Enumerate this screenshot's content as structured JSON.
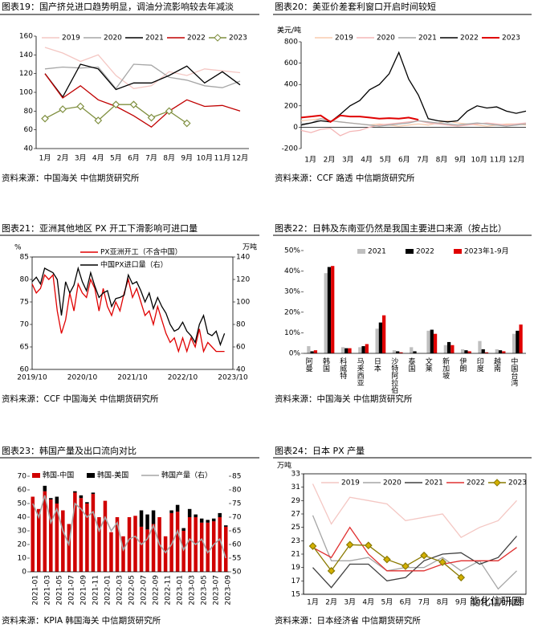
{
  "watermark": "能化信研圈",
  "chart_data": [
    {
      "type": "line",
      "title": "图表19：国产挤兑进口趋势明显，调油分流影响较去年减淡",
      "source": "资料来源：中国海关  中信期货研究所",
      "categories": [
        "1月",
        "2月",
        "3月",
        "4月",
        "5月",
        "6月",
        "7月",
        "8月",
        "9月",
        "10月",
        "11月",
        "12月"
      ],
      "ylim": [
        40,
        160
      ],
      "yticks": [
        40,
        60,
        80,
        100,
        120,
        140,
        160
      ],
      "series": [
        {
          "name": "2019",
          "color": "#f4c7c3",
          "values": [
            148,
            142,
            133,
            140,
            118,
            104,
            107,
            122,
            118,
            125,
            123,
            121
          ]
        },
        {
          "name": "2020",
          "color": "#a6a6a6",
          "values": [
            125,
            127,
            126,
            127,
            104,
            130,
            129,
            116,
            113,
            107,
            105,
            112
          ]
        },
        {
          "name": "2021",
          "color": "#000000",
          "values": [
            120,
            95,
            130,
            125,
            103,
            110,
            110,
            118,
            128,
            110,
            122,
            108
          ]
        },
        {
          "name": "2022",
          "color": "#c00000",
          "values": [
            120,
            94,
            107,
            92,
            85,
            75,
            63,
            80,
            92,
            85,
            86,
            80
          ]
        },
        {
          "name": "2023",
          "color": "#7f8f3f",
          "marker": "diamond",
          "values": [
            72,
            82,
            85,
            70,
            87,
            87,
            73,
            80,
            67,
            null,
            null,
            null
          ]
        }
      ]
    },
    {
      "type": "line",
      "title": "图表20：美亚价差套利窗口开启时间较短",
      "source": "资料来源：CCF 路透  中信期货研究所",
      "ylabel": "美元/吨",
      "categories": [
        "1月",
        null,
        "2月",
        null,
        "3月",
        null,
        "4月",
        null,
        "5月",
        null,
        "6月",
        null,
        "7月",
        null,
        "8月",
        null,
        "9月",
        null,
        "10月",
        null,
        "11月",
        null,
        "12月",
        null
      ],
      "ylim": [
        -200,
        800
      ],
      "yticks": [
        -200,
        0,
        200,
        400,
        600,
        800
      ],
      "series": [
        {
          "name": "2019",
          "color": "#f8cbad",
          "values": [
            60,
            70,
            80,
            60,
            50,
            40,
            30,
            20,
            30,
            20,
            10,
            20,
            30,
            20,
            40,
            60,
            40,
            30,
            20,
            10,
            20,
            30,
            30,
            20
          ]
        },
        {
          "name": "2020",
          "color": "#f4b6b6",
          "values": [
            -30,
            -50,
            -20,
            -10,
            -80,
            -40,
            -30,
            0,
            20,
            30,
            40,
            50,
            60,
            40,
            30,
            20,
            10,
            20,
            30,
            40,
            30,
            20,
            30,
            40
          ]
        },
        {
          "name": "2021",
          "color": "#a6a6a6",
          "values": [
            30,
            40,
            80,
            60,
            50,
            40,
            30,
            20,
            10,
            20,
            30,
            40,
            60,
            50,
            40,
            30,
            20,
            30,
            40,
            30,
            20,
            10,
            20,
            30
          ]
        },
        {
          "name": "2022",
          "color": "#000000",
          "values": [
            20,
            40,
            60,
            50,
            120,
            200,
            250,
            350,
            400,
            500,
            700,
            450,
            300,
            80,
            60,
            50,
            60,
            150,
            200,
            180,
            190,
            150,
            130,
            150
          ]
        },
        {
          "name": "2023",
          "color": "#e00000",
          "width": 2,
          "values": [
            90,
            100,
            110,
            50,
            110,
            100,
            100,
            90,
            80,
            85,
            80,
            90,
            70,
            null,
            null,
            null,
            null,
            null,
            null,
            null,
            null,
            null,
            null,
            null
          ]
        }
      ]
    },
    {
      "type": "dual_line",
      "title": "图表21：亚洲其他地区 PX 开工下滑影响可进口量",
      "source": "资料来源：CCF 中国海关  中信期货研究所",
      "ylabel": "%",
      "y2label": "万吨",
      "categories": [
        "2019/10",
        null,
        null,
        null,
        null,
        null,
        null,
        null,
        null,
        null,
        null,
        null,
        "2020/10",
        null,
        null,
        null,
        null,
        null,
        null,
        null,
        null,
        null,
        null,
        null,
        "2021/10",
        null,
        null,
        null,
        null,
        null,
        null,
        null,
        null,
        null,
        null,
        null,
        "2022/10",
        null,
        null,
        null,
        null,
        null,
        null,
        null,
        null,
        null,
        null,
        null,
        "2023/10"
      ],
      "ylim": [
        60,
        85
      ],
      "yticks": [
        60,
        65,
        70,
        75,
        80,
        85
      ],
      "y2lim": [
        40,
        140
      ],
      "y2ticks": [
        40,
        60,
        80,
        100,
        120,
        140
      ],
      "series": [
        {
          "name": "PX亚洲开工（不含中国）",
          "color": "#e00000",
          "values": [
            79,
            77,
            78,
            81,
            80,
            81,
            73,
            68,
            71,
            77,
            73,
            79,
            77,
            76,
            80,
            78,
            73,
            78,
            74,
            72,
            75,
            73,
            77,
            80,
            76,
            78,
            75,
            72,
            73,
            70,
            74,
            71,
            68,
            66,
            67,
            64,
            67,
            64,
            67,
            65,
            69,
            64,
            66,
            65,
            64,
            64,
            64,
            null,
            null
          ]
        },
        {
          "name": "中国PX进口量（右）",
          "color": "#000000",
          "axis": "y2",
          "values": [
            118,
            122,
            116,
            130,
            128,
            126,
            120,
            88,
            118,
            108,
            115,
            130,
            118,
            110,
            126,
            114,
            104,
            108,
            110,
            96,
            103,
            104,
            106,
            124,
            116,
            118,
            110,
            100,
            108,
            94,
            104,
            96,
            90,
            80,
            74,
            76,
            82,
            74,
            70,
            64,
            80,
            88,
            72,
            70,
            74,
            62,
            72,
            null,
            null
          ]
        }
      ]
    },
    {
      "type": "bar",
      "title": "图表22：日韩及东南亚仍然是我国主要进口来源（按占比）",
      "source": "资料来源：中国海关  中信期货研究所",
      "categories": [
        "阿曼",
        "韩国",
        "科威特",
        "马来西亚",
        "日本",
        "沙特阿拉伯",
        "泰国",
        "文莱",
        "新加坡",
        "伊朗",
        "印度",
        "越南",
        "中国台湾"
      ],
      "ylim": [
        0,
        50
      ],
      "yticks": [
        {
          "value": 0,
          "label": "0%"
        },
        {
          "value": 10,
          "label": "10%"
        },
        {
          "value": 20,
          "label": "20%"
        },
        {
          "value": 30,
          "label": "30%"
        },
        {
          "value": 40,
          "label": "40%"
        },
        {
          "value": 50,
          "label": "50%"
        }
      ],
      "series": [
        {
          "name": "2021",
          "color": "#bfbfbf",
          "values": [
            3.5,
            39,
            3,
            3,
            12,
            1.5,
            3,
            11,
            4,
            2,
            6,
            2,
            9.5
          ]
        },
        {
          "name": "2022",
          "color": "#000000",
          "values": [
            1,
            42,
            2.5,
            3.5,
            15,
            1,
            1,
            11.5,
            5.5,
            1.5,
            2,
            1.5,
            11
          ]
        },
        {
          "name": "2023年1-9月",
          "color": "#e00000",
          "values": [
            1.5,
            42.5,
            2.5,
            4.5,
            18.5,
            0.5,
            0,
            9.5,
            4,
            1,
            0.5,
            1,
            14
          ]
        }
      ]
    },
    {
      "type": "stacked_bar_line",
      "title": "图表23：韩国产量及出口流向对比",
      "source": "资料来源：KPIA 韩国海关  中信期货研究所",
      "categories": [
        "2021-01",
        null,
        "2021-03",
        null,
        "2021-05",
        null,
        "2021-07",
        null,
        "2021-09",
        null,
        "2021-11",
        null,
        "2022-01",
        null,
        "2022-03",
        null,
        "2022-05",
        null,
        "2022-07",
        null,
        "2022-09",
        null,
        "2022-11",
        null,
        "2023-01",
        null,
        "2023-03",
        null,
        "2023-05",
        null,
        "2023-07",
        null,
        "2023-09"
      ],
      "ylim": [
        0,
        70
      ],
      "yticks": [
        0,
        10,
        20,
        30,
        40,
        50,
        60,
        70
      ],
      "y2lim": [
        50,
        85
      ],
      "y2ticks": [
        50,
        55,
        60,
        65,
        70,
        75,
        80,
        85
      ],
      "series": [
        {
          "name": "韩国-中国",
          "color": "#d00000",
          "values": [
            55,
            46,
            59,
            53,
            50,
            45,
            35,
            58,
            54,
            50,
            57,
            40,
            52,
            29,
            40,
            26,
            40,
            41,
            33,
            31,
            35,
            40,
            26,
            43,
            44,
            30,
            40,
            40,
            36,
            36,
            37,
            40,
            33
          ]
        },
        {
          "name": "韩国-美国",
          "color": "#000000",
          "values": [
            0,
            0,
            4,
            1,
            5,
            0,
            0,
            1,
            2,
            1,
            1,
            0,
            0,
            0,
            0,
            0,
            0,
            0,
            12,
            11,
            10,
            0,
            0,
            2,
            5,
            2,
            6,
            2,
            3,
            2,
            2,
            3,
            1
          ]
        },
        {
          "name": "韩国产量（右）",
          "color": "#a6a6a6",
          "axis": "y2",
          "values": [
            75,
            70,
            78,
            68,
            73,
            65,
            60,
            75,
            73,
            70,
            72,
            65,
            70,
            65,
            68,
            58,
            62,
            63,
            60,
            62,
            67,
            60,
            57,
            60,
            65,
            58,
            62,
            60,
            62,
            57,
            60,
            62,
            55
          ]
        }
      ]
    },
    {
      "type": "line",
      "title": "图表24：日本 PX 产量",
      "source": "资料来源：日本经济省  中信期货研究所",
      "ylabel": "万吨",
      "categories": [
        "1月",
        "2月",
        "3月",
        "4月",
        "5月",
        "6月",
        "7月",
        "8月",
        "9月",
        "10月",
        "11月",
        "12月"
      ],
      "ylim": [
        15,
        33
      ],
      "yticks": [
        15,
        17,
        19,
        21,
        23,
        25,
        27,
        29,
        31,
        33
      ],
      "series": [
        {
          "name": "2019",
          "color": "#f4c7c3",
          "values": [
            31.5,
            25.5,
            29.5,
            29,
            28.5,
            26,
            26.5,
            27,
            23.5,
            25,
            26,
            29
          ]
        },
        {
          "name": "2020",
          "color": "#a6a6a6",
          "values": [
            26.8,
            20,
            20,
            20.5,
            18.5,
            19,
            19,
            20.5,
            18.5,
            20,
            15.8,
            18.5
          ]
        },
        {
          "name": "2021",
          "color": "#404040",
          "values": [
            19,
            16,
            19.5,
            19.5,
            17,
            17.5,
            20,
            21,
            21.2,
            19.5,
            20.5,
            23.7
          ]
        },
        {
          "name": "2022",
          "color": "#e03030",
          "values": [
            22,
            20.5,
            25,
            21,
            18.5,
            18.5,
            18.5,
            19.5,
            20,
            20,
            20,
            22
          ]
        },
        {
          "name": "2023",
          "color": "#8a7a00",
          "marker": "diamond",
          "mfill": "#d4b000",
          "values": [
            22.2,
            18.5,
            22.4,
            22.3,
            20.2,
            19.2,
            20.8,
            19.8,
            17.5,
            null,
            null,
            null
          ]
        }
      ]
    }
  ]
}
